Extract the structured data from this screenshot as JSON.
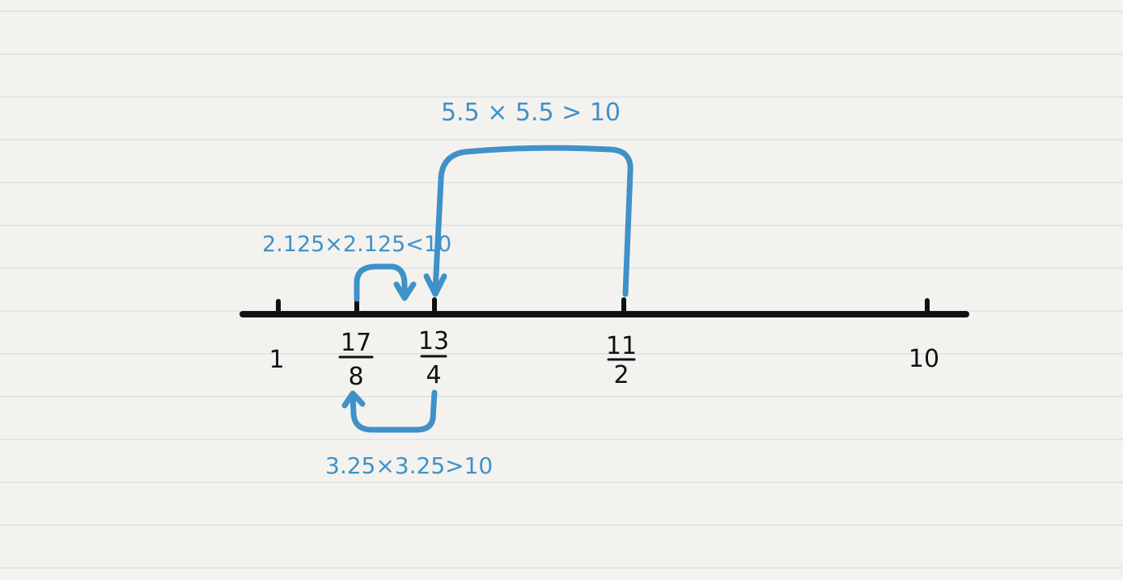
{
  "number_line": {
    "labels": [
      {
        "id": "one",
        "text": "1"
      },
      {
        "id": "seventeen-eighths",
        "numerator": "17",
        "denominator": "8"
      },
      {
        "id": "thirteen-fourths",
        "numerator": "13",
        "denominator": "4"
      },
      {
        "id": "eleven-halves",
        "numerator": "11",
        "denominator": "2"
      },
      {
        "id": "ten",
        "text": "10"
      }
    ]
  },
  "annotations": {
    "top_big": "5.5 × 5.5 > 10",
    "top_small": "2.125×2.125<10",
    "bottom": "3.25×3.25>10"
  },
  "colors": {
    "ink_black": "#111111",
    "ink_blue": "#3e92c9",
    "paper": "#f4f2ee",
    "rule_lines": "#dfe6ea"
  }
}
